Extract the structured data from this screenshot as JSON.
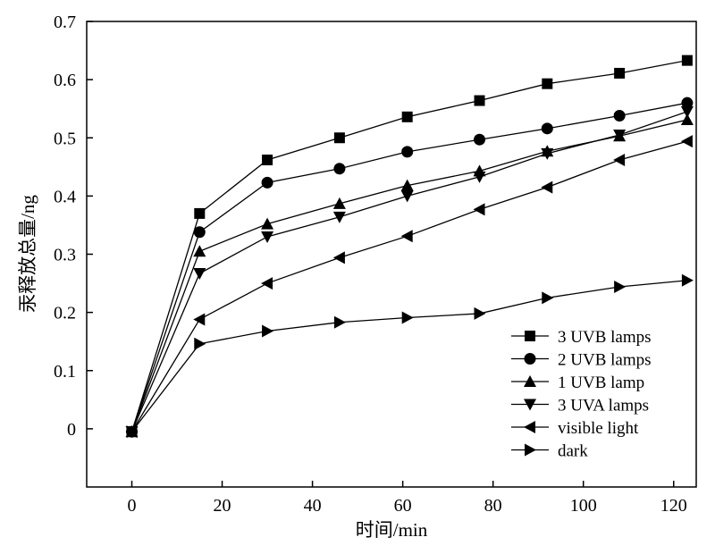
{
  "chart_data": {
    "type": "line",
    "xlabel": "时间/min",
    "ylabel": "汞释放总量/ng",
    "xlim": [
      -10,
      125
    ],
    "ylim": [
      -0.1,
      0.7
    ],
    "xticks": [
      0,
      20,
      40,
      60,
      80,
      100,
      120
    ],
    "yticks": [
      0,
      0.1,
      0.2,
      0.3,
      0.4,
      0.5,
      0.6,
      0.7
    ],
    "ytick_labels": [
      "0",
      "0.1",
      "0.2",
      "0.3",
      "0.4",
      "0.5",
      "0.6",
      "0.7"
    ],
    "legend_position": "bottom-right",
    "x": [
      0,
      15,
      30,
      46,
      61,
      77,
      92,
      108,
      123
    ],
    "series": [
      {
        "name": "3 UVB lamps",
        "marker": "square",
        "values": [
          -0.005,
          0.37,
          0.462,
          0.5,
          0.536,
          0.564,
          0.593,
          0.611,
          0.633
        ]
      },
      {
        "name": "2 UVB lamps",
        "marker": "circle",
        "values": [
          -0.005,
          0.338,
          0.423,
          0.447,
          0.476,
          0.497,
          0.516,
          0.538,
          0.56
        ]
      },
      {
        "name": "1 UVB lamp",
        "marker": "triangle-up",
        "values": [
          -0.005,
          0.305,
          0.352,
          0.387,
          0.418,
          0.443,
          0.477,
          0.503,
          0.531
        ]
      },
      {
        "name": "3 UVA lamps",
        "marker": "triangle-down",
        "values": [
          -0.005,
          0.267,
          0.33,
          0.364,
          0.4,
          0.433,
          0.473,
          0.505,
          0.545
        ]
      },
      {
        "name": "visible light",
        "marker": "triangle-left",
        "values": [
          -0.005,
          0.188,
          0.25,
          0.294,
          0.331,
          0.377,
          0.415,
          0.462,
          0.494
        ]
      },
      {
        "name": "dark",
        "marker": "triangle-right",
        "values": [
          -0.005,
          0.146,
          0.168,
          0.183,
          0.191,
          0.198,
          0.225,
          0.244,
          0.255
        ]
      }
    ]
  }
}
